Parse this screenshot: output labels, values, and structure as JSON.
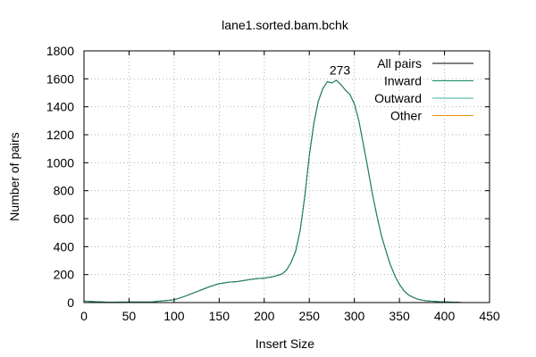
{
  "chart_data": {
    "type": "line",
    "title": "lane1.sorted.bam.bchk",
    "xlabel": "Insert Size",
    "ylabel": "Number of pairs",
    "xlim": [
      0,
      450
    ],
    "ylim": [
      0,
      1800
    ],
    "xticks": [
      0,
      50,
      100,
      150,
      200,
      250,
      300,
      350,
      400,
      450
    ],
    "yticks": [
      0,
      200,
      400,
      600,
      800,
      1000,
      1200,
      1400,
      1600,
      1800
    ],
    "grid": true,
    "legend_position": "top-right",
    "annotation": {
      "text": "273",
      "x": 284,
      "y": 1600
    },
    "series": [
      {
        "name": "All pairs",
        "color": "#000000",
        "x": [
          0,
          25,
          50,
          75,
          100,
          110,
          120,
          130,
          140,
          150,
          160,
          170,
          180,
          190,
          200,
          210,
          220,
          225,
          230,
          235,
          240,
          245,
          250,
          255,
          260,
          265,
          270,
          275,
          280,
          285,
          290,
          295,
          300,
          305,
          310,
          315,
          320,
          325,
          330,
          335,
          340,
          345,
          350,
          355,
          360,
          365,
          370,
          375,
          380,
          390,
          400,
          410,
          420
        ],
        "y": [
          10,
          3,
          4,
          5,
          20,
          40,
          65,
          90,
          115,
          135,
          145,
          150,
          160,
          170,
          175,
          185,
          205,
          235,
          290,
          370,
          520,
          760,
          1050,
          1280,
          1440,
          1530,
          1580,
          1570,
          1590,
          1560,
          1520,
          1490,
          1420,
          1300,
          1130,
          960,
          780,
          620,
          480,
          370,
          270,
          190,
          130,
          85,
          55,
          38,
          25,
          18,
          12,
          8,
          5,
          3,
          0
        ]
      },
      {
        "name": "Inward",
        "color": "#1a8a5a",
        "x": [
          0,
          25,
          50,
          75,
          100,
          110,
          120,
          130,
          140,
          150,
          160,
          170,
          180,
          190,
          200,
          210,
          220,
          225,
          230,
          235,
          240,
          245,
          250,
          255,
          260,
          265,
          270,
          275,
          280,
          285,
          290,
          295,
          300,
          305,
          310,
          315,
          320,
          325,
          330,
          335,
          340,
          345,
          350,
          355,
          360,
          365,
          370,
          375,
          380,
          390,
          400,
          410,
          420
        ],
        "y": [
          10,
          3,
          4,
          5,
          20,
          40,
          65,
          90,
          115,
          135,
          145,
          150,
          160,
          170,
          175,
          185,
          205,
          235,
          290,
          370,
          520,
          760,
          1050,
          1280,
          1440,
          1530,
          1580,
          1570,
          1590,
          1560,
          1520,
          1490,
          1420,
          1300,
          1130,
          960,
          780,
          620,
          480,
          370,
          270,
          190,
          130,
          85,
          55,
          38,
          25,
          18,
          12,
          8,
          5,
          3,
          0
        ]
      },
      {
        "name": "Outward",
        "color": "#3cb4a0",
        "x": [
          0,
          25,
          50,
          100,
          150,
          200,
          250,
          300,
          350,
          400,
          420
        ],
        "y": [
          0,
          0,
          0,
          0,
          0,
          0,
          0,
          0,
          0,
          0,
          0
        ]
      },
      {
        "name": "Other",
        "color": "#e8930c",
        "x": [
          0,
          25,
          50,
          100,
          150,
          200,
          250,
          300,
          350,
          400,
          420
        ],
        "y": [
          0,
          0,
          0,
          0,
          0,
          0,
          0,
          0,
          0,
          0,
          0
        ]
      }
    ]
  }
}
